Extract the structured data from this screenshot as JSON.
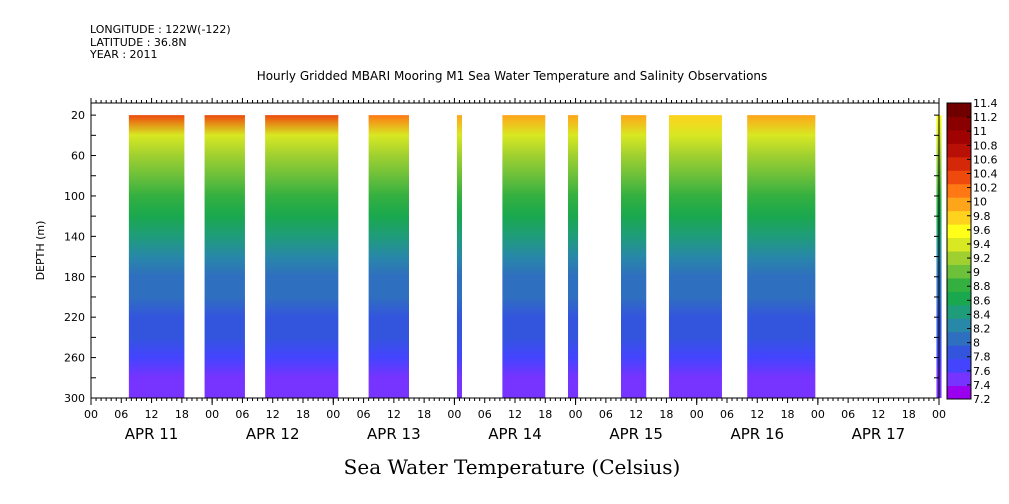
{
  "header": {
    "longitude": "LONGITUDE : 122W(-122)",
    "latitude": "LATITUDE : 36.8N",
    "year": "YEAR : 2011"
  },
  "chart_data": {
    "type": "heatmap",
    "title": "Hourly Gridded MBARI Mooring M1 Sea Water Temperature and Salinity Observations",
    "xlabel": "Sea Water Temperature (Celsius)",
    "ylabel": "DEPTH (m)",
    "x_hours_range": [
      0,
      168
    ],
    "x_tick_hours": [
      0,
      6,
      12,
      18,
      24,
      30,
      36,
      42,
      48,
      54,
      60,
      66,
      72,
      78,
      84,
      90,
      96,
      102,
      108,
      114,
      120,
      126,
      132,
      138,
      144,
      150,
      156,
      162,
      168
    ],
    "x_tick_labels": [
      "00",
      "06",
      "12",
      "18",
      "00",
      "06",
      "12",
      "18",
      "00",
      "06",
      "12",
      "18",
      "00",
      "06",
      "12",
      "18",
      "00",
      "06",
      "12",
      "18",
      "00",
      "06",
      "12",
      "18",
      "00",
      "06",
      "12",
      "18",
      "00"
    ],
    "day_labels": [
      "APR 11",
      "APR 12",
      "APR 13",
      "APR 14",
      "APR 15",
      "APR 16",
      "APR 17"
    ],
    "y_range": [
      300,
      8
    ],
    "y_ticks": [
      20,
      60,
      100,
      140,
      180,
      220,
      260,
      300
    ],
    "colorbar": {
      "min": 7.2,
      "max": 11.4,
      "labels": [
        "11.4",
        "11.2",
        "11",
        "10.8",
        "10.6",
        "10.4",
        "10.2",
        "10",
        "9.8",
        "9.6",
        "9.4",
        "9.2",
        "9",
        "8.8",
        "8.6",
        "8.4",
        "8.2",
        "8",
        "7.8",
        "7.6",
        "7.4",
        "7.2"
      ],
      "colors": [
        "#9900ee",
        "#7733ff",
        "#4444ff",
        "#3355dd",
        "#2f6fbf",
        "#2888a8",
        "#1f9c7a",
        "#1aa84e",
        "#34b040",
        "#6cc03a",
        "#a0d030",
        "#d8e822",
        "#ffff1a",
        "#ffd21e",
        "#ffa51a",
        "#ff7814",
        "#ee4a0e",
        "#d42808",
        "#b81006",
        "#a00202",
        "#8a0000",
        "#700000"
      ]
    },
    "depth_profile": [
      {
        "depth": 20,
        "temp": 9.9
      },
      {
        "depth": 40,
        "temp": 9.4
      },
      {
        "depth": 60,
        "temp": 9.15
      },
      {
        "depth": 80,
        "temp": 9.0
      },
      {
        "depth": 100,
        "temp": 8.8
      },
      {
        "depth": 120,
        "temp": 8.6
      },
      {
        "depth": 140,
        "temp": 8.45
      },
      {
        "depth": 160,
        "temp": 8.3
      },
      {
        "depth": 180,
        "temp": 8.15
      },
      {
        "depth": 200,
        "temp": 8.05
      },
      {
        "depth": 220,
        "temp": 7.95
      },
      {
        "depth": 240,
        "temp": 7.85
      },
      {
        "depth": 260,
        "temp": 7.7
      },
      {
        "depth": 280,
        "temp": 7.55
      },
      {
        "depth": 300,
        "temp": 7.45
      }
    ],
    "data_blocks": [
      {
        "start_hour": 7.5,
        "end_hour": 18.5,
        "surface_temp": 10.4
      },
      {
        "start_hour": 22.5,
        "end_hour": 30.5,
        "surface_temp": 10.3
      },
      {
        "start_hour": 34.5,
        "end_hour": 49,
        "surface_temp": 10.4
      },
      {
        "start_hour": 55,
        "end_hour": 63,
        "surface_temp": 10.2
      },
      {
        "start_hour": 72.5,
        "end_hour": 73.5,
        "surface_temp": 9.9
      },
      {
        "start_hour": 81.5,
        "end_hour": 90,
        "surface_temp": 10.0
      },
      {
        "start_hour": 94.5,
        "end_hour": 96.5,
        "surface_temp": 9.9
      },
      {
        "start_hour": 105,
        "end_hour": 110,
        "surface_temp": 9.9
      },
      {
        "start_hour": 114.5,
        "end_hour": 125,
        "surface_temp": 9.8
      },
      {
        "start_hour": 130,
        "end_hour": 143.5,
        "surface_temp": 9.9
      },
      {
        "start_hour": 167.5,
        "end_hour": 168.5,
        "surface_temp": 9.6
      }
    ]
  }
}
